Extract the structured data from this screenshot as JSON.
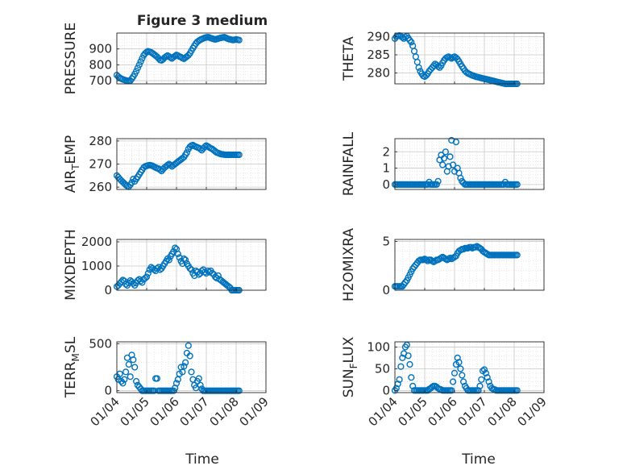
{
  "figure": {
    "title": "Figure 3 medium",
    "xlabel": "Time",
    "x_ticks": [
      "01/04",
      "01/05",
      "01/06",
      "01/07",
      "01/08",
      "01/09"
    ],
    "marker_color": "#0072BD",
    "grid_color": "#d9d9d9"
  },
  "chart_data": [
    {
      "type": "scatter",
      "ylabel": "PRESSURE",
      "ylim": [
        680,
        1000
      ],
      "yticks": [
        700,
        800,
        900
      ],
      "x": [
        4.0,
        4.05,
        4.1,
        4.15,
        4.2,
        4.25,
        4.3,
        4.35,
        4.4,
        4.45,
        4.5,
        4.55,
        4.6,
        4.65,
        4.7,
        4.75,
        4.8,
        4.85,
        4.9,
        4.95,
        5.0,
        5.05,
        5.1,
        5.15,
        5.2,
        5.25,
        5.3,
        5.35,
        5.4,
        5.45,
        5.5,
        5.55,
        5.6,
        5.65,
        5.7,
        5.75,
        5.8,
        5.85,
        5.9,
        5.95,
        6.0,
        6.05,
        6.1,
        6.15,
        6.2,
        6.25,
        6.3,
        6.35,
        6.4,
        6.45,
        6.5,
        6.55,
        6.6,
        6.65,
        6.7,
        6.75,
        6.8,
        6.85,
        6.9,
        6.95,
        7.0,
        7.05,
        7.1,
        7.15,
        7.2,
        7.25,
        7.3,
        7.35,
        7.4,
        7.45,
        7.5,
        7.55,
        7.6,
        7.65,
        7.7,
        7.75,
        7.8,
        7.85,
        7.9,
        7.95,
        8.0,
        8.05,
        8.1
      ],
      "y": [
        735,
        725,
        718,
        712,
        708,
        705,
        702,
        700,
        698,
        700,
        712,
        725,
        742,
        760,
        780,
        800,
        820,
        840,
        860,
        872,
        880,
        885,
        882,
        878,
        872,
        865,
        858,
        850,
        840,
        830,
        828,
        835,
        845,
        852,
        858,
        852,
        845,
        840,
        848,
        855,
        862,
        858,
        852,
        848,
        842,
        838,
        845,
        852,
        860,
        872,
        888,
        905,
        920,
        935,
        945,
        952,
        958,
        962,
        966,
        970,
        972,
        974,
        972,
        968,
        965,
        962,
        960,
        962,
        965,
        968,
        970,
        972,
        974,
        970,
        966,
        962,
        960,
        958,
        956,
        958,
        960,
        958,
        956
      ]
    },
    {
      "type": "scatter",
      "ylabel": "THETA",
      "ylim": [
        277,
        291
      ],
      "yticks": [
        280,
        285,
        290
      ],
      "x": [
        4.0,
        4.05,
        4.1,
        4.15,
        4.2,
        4.25,
        4.3,
        4.35,
        4.4,
        4.45,
        4.5,
        4.55,
        4.6,
        4.65,
        4.7,
        4.75,
        4.8,
        4.85,
        4.9,
        4.95,
        5.0,
        5.05,
        5.1,
        5.15,
        5.2,
        5.25,
        5.3,
        5.35,
        5.4,
        5.45,
        5.5,
        5.55,
        5.6,
        5.65,
        5.7,
        5.75,
        5.8,
        5.85,
        5.9,
        5.95,
        6.0,
        6.05,
        6.1,
        6.15,
        6.2,
        6.25,
        6.3,
        6.35,
        6.4,
        6.45,
        6.5,
        6.55,
        6.6,
        6.65,
        6.7,
        6.75,
        6.8,
        6.85,
        6.9,
        6.95,
        7.0,
        7.05,
        7.1,
        7.15,
        7.2,
        7.25,
        7.3,
        7.35,
        7.4,
        7.45,
        7.5,
        7.55,
        7.6,
        7.65,
        7.7,
        7.75,
        7.8,
        7.85,
        7.9,
        7.95,
        8.0,
        8.05,
        8.1
      ],
      "y": [
        289.5,
        290,
        290.2,
        290.3,
        290.1,
        289.8,
        289.5,
        289.9,
        290.2,
        289.6,
        289,
        288.5,
        287.5,
        286,
        284.5,
        283,
        281.5,
        280.5,
        279.8,
        279.2,
        279,
        279.3,
        279.8,
        280.5,
        281,
        281.5,
        282,
        282.5,
        282.2,
        281.8,
        281.5,
        282,
        282.8,
        283.5,
        284,
        284.3,
        284.5,
        284.2,
        284,
        284.3,
        284.5,
        284.2,
        283.8,
        283.2,
        282.5,
        281.8,
        281.2,
        280.6,
        280.2,
        279.9,
        279.7,
        279.5,
        279.3,
        279.2,
        279,
        278.9,
        278.8,
        278.7,
        278.6,
        278.5,
        278.4,
        278.3,
        278.2,
        278.1,
        278,
        277.9,
        277.8,
        277.7,
        277.6,
        277.5,
        277.4,
        277.3,
        277.2,
        277.1,
        277,
        277,
        277,
        277,
        277,
        277,
        277,
        277,
        277
      ]
    },
    {
      "type": "scatter",
      "ylabel": "AIR_TEMP",
      "ylim": [
        259,
        281
      ],
      "yticks": [
        260,
        270,
        280
      ],
      "x": [
        4.0,
        4.05,
        4.1,
        4.15,
        4.2,
        4.25,
        4.3,
        4.35,
        4.4,
        4.45,
        4.5,
        4.55,
        4.6,
        4.65,
        4.7,
        4.75,
        4.8,
        4.85,
        4.9,
        4.95,
        5.0,
        5.05,
        5.1,
        5.15,
        5.2,
        5.25,
        5.3,
        5.35,
        5.4,
        5.45,
        5.5,
        5.55,
        5.6,
        5.65,
        5.7,
        5.75,
        5.8,
        5.85,
        5.9,
        5.95,
        6.0,
        6.05,
        6.1,
        6.15,
        6.2,
        6.25,
        6.3,
        6.35,
        6.4,
        6.45,
        6.5,
        6.55,
        6.6,
        6.65,
        6.7,
        6.75,
        6.8,
        6.85,
        6.9,
        6.95,
        7.0,
        7.05,
        7.1,
        7.15,
        7.2,
        7.25,
        7.3,
        7.35,
        7.4,
        7.45,
        7.5,
        7.55,
        7.6,
        7.65,
        7.7,
        7.75,
        7.8,
        7.85,
        7.9,
        7.95,
        8.0,
        8.05,
        8.1
      ],
      "y": [
        265,
        264.3,
        263.5,
        262.8,
        262.2,
        261.6,
        261,
        260.5,
        260.2,
        261,
        262,
        263.5,
        262.5,
        263.5,
        264.5,
        265.5,
        266.5,
        267.5,
        268.5,
        269,
        269.2,
        269.4,
        269.5,
        269.4,
        269.2,
        268.8,
        268.5,
        268.2,
        268,
        267.5,
        267,
        267.8,
        268.5,
        269,
        269.5,
        270,
        269.5,
        269,
        269.5,
        270,
        270.5,
        271,
        271.5,
        272,
        272.5,
        273,
        274,
        275,
        276.5,
        277.5,
        278,
        278.2,
        277.8,
        277.5,
        277.2,
        277,
        276.5,
        276,
        276.8,
        277.5,
        278,
        277.6,
        277.2,
        276.8,
        276.5,
        276,
        275.5,
        275,
        274.8,
        274.5,
        274.3,
        274.2,
        274.1,
        274,
        274,
        274,
        274,
        274,
        274,
        274,
        274,
        274,
        274
      ]
    },
    {
      "type": "scatter",
      "ylabel": "RAINFALL",
      "ylim": [
        -0.3,
        2.8
      ],
      "yticks": [
        0,
        1,
        2
      ],
      "x": [
        4.0,
        4.05,
        4.1,
        4.15,
        4.2,
        4.25,
        4.3,
        4.35,
        4.4,
        4.45,
        4.5,
        4.55,
        4.6,
        4.65,
        4.7,
        4.75,
        4.8,
        4.85,
        4.9,
        4.95,
        5.0,
        5.05,
        5.1,
        5.15,
        5.2,
        5.25,
        5.3,
        5.35,
        5.4,
        5.45,
        5.5,
        5.55,
        5.6,
        5.65,
        5.7,
        5.75,
        5.8,
        5.85,
        5.9,
        5.95,
        6.0,
        6.05,
        6.1,
        6.15,
        6.2,
        6.25,
        6.3,
        6.35,
        6.4,
        6.45,
        6.5,
        6.55,
        6.6,
        6.65,
        6.7,
        6.75,
        6.8,
        6.85,
        6.9,
        6.95,
        7.0,
        7.05,
        7.1,
        7.15,
        7.2,
        7.25,
        7.3,
        7.35,
        7.4,
        7.45,
        7.5,
        7.55,
        7.6,
        7.65,
        7.7,
        7.75,
        7.8,
        7.85,
        7.9,
        7.95,
        8.0,
        8.05,
        8.1
      ],
      "y": [
        0,
        0,
        0,
        0,
        0,
        0,
        0,
        0,
        0,
        0,
        0,
        0,
        0,
        0,
        0,
        0,
        0,
        0,
        0,
        0,
        0,
        0,
        0,
        0.15,
        0,
        0,
        0,
        0,
        0,
        0.2,
        1.5,
        1.8,
        1.2,
        1.6,
        2.0,
        0.8,
        1.1,
        1.7,
        2.7,
        1.2,
        0.8,
        2.6,
        1.0,
        0.7,
        0.4,
        0.2,
        0.1,
        0,
        0,
        0,
        0,
        0,
        0,
        0,
        0,
        0,
        0,
        0,
        0,
        0,
        0,
        0,
        0,
        0,
        0,
        0,
        0,
        0,
        0,
        0,
        0,
        0,
        0,
        0,
        0.15,
        0,
        0,
        0,
        0,
        0,
        0,
        0,
        0
      ]
    },
    {
      "type": "scatter",
      "ylabel": "MIXDEPTH",
      "ylim": [
        0,
        2100
      ],
      "yticks": [
        0,
        1000,
        2000
      ],
      "x": [
        4.0,
        4.05,
        4.1,
        4.15,
        4.2,
        4.25,
        4.3,
        4.35,
        4.4,
        4.45,
        4.5,
        4.55,
        4.6,
        4.65,
        4.7,
        4.75,
        4.8,
        4.85,
        4.9,
        4.95,
        5.0,
        5.05,
        5.1,
        5.15,
        5.2,
        5.25,
        5.3,
        5.35,
        5.4,
        5.45,
        5.5,
        5.55,
        5.6,
        5.65,
        5.7,
        5.75,
        5.8,
        5.85,
        5.9,
        5.95,
        6.0,
        6.05,
        6.1,
        6.15,
        6.2,
        6.25,
        6.3,
        6.35,
        6.4,
        6.45,
        6.5,
        6.55,
        6.6,
        6.65,
        6.7,
        6.75,
        6.8,
        6.85,
        6.9,
        6.95,
        7.0,
        7.05,
        7.1,
        7.15,
        7.2,
        7.25,
        7.3,
        7.35,
        7.4,
        7.45,
        7.5,
        7.55,
        7.6,
        7.65,
        7.7,
        7.75,
        7.8,
        7.85,
        7.9,
        7.95,
        8.0,
        8.05,
        8.1
      ],
      "y": [
        150,
        200,
        280,
        350,
        420,
        380,
        250,
        200,
        300,
        400,
        350,
        280,
        200,
        300,
        400,
        450,
        380,
        320,
        450,
        500,
        550,
        700,
        850,
        950,
        900,
        850,
        800,
        900,
        950,
        850,
        900,
        1000,
        1100,
        1200,
        1300,
        1250,
        1400,
        1500,
        1600,
        1750,
        1700,
        1500,
        1350,
        1200,
        1100,
        1300,
        1250,
        1100,
        1000,
        900,
        850,
        700,
        600,
        800,
        750,
        650,
        700,
        800,
        850,
        750,
        700,
        800,
        750,
        800,
        700,
        650,
        550,
        500,
        600,
        450,
        400,
        350,
        300,
        250,
        200,
        150,
        100,
        0,
        0,
        0,
        0,
        0,
        0
      ]
    },
    {
      "type": "scatter",
      "ylabel": "H2OMIXRA",
      "ylim": [
        0,
        5.2
      ],
      "yticks": [
        0,
        5
      ],
      "x": [
        4.0,
        4.05,
        4.1,
        4.15,
        4.2,
        4.25,
        4.3,
        4.35,
        4.4,
        4.45,
        4.5,
        4.55,
        4.6,
        4.65,
        4.7,
        4.75,
        4.8,
        4.85,
        4.9,
        4.95,
        5.0,
        5.05,
        5.1,
        5.15,
        5.2,
        5.25,
        5.3,
        5.35,
        5.4,
        5.45,
        5.5,
        5.55,
        5.6,
        5.65,
        5.7,
        5.75,
        5.8,
        5.85,
        5.9,
        5.95,
        6.0,
        6.05,
        6.1,
        6.15,
        6.2,
        6.25,
        6.3,
        6.35,
        6.4,
        6.45,
        6.5,
        6.55,
        6.6,
        6.65,
        6.7,
        6.75,
        6.8,
        6.85,
        6.9,
        6.95,
        7.0,
        7.05,
        7.1,
        7.15,
        7.2,
        7.25,
        7.3,
        7.35,
        7.4,
        7.45,
        7.5,
        7.55,
        7.6,
        7.65,
        7.7,
        7.75,
        7.8,
        7.85,
        7.9,
        7.95,
        8.0,
        8.05,
        8.1
      ],
      "y": [
        0.4,
        0.4,
        0.4,
        0.4,
        0.4,
        0.4,
        0.6,
        0.8,
        1.0,
        1.3,
        1.6,
        1.9,
        2.2,
        2.4,
        2.6,
        2.8,
        3.0,
        3.1,
        3.1,
        3.1,
        3.2,
        3.1,
        3.0,
        3.1,
        3.1,
        3.0,
        2.9,
        3.0,
        3.1,
        3.1,
        3.2,
        3.3,
        3.4,
        3.3,
        3.2,
        3.1,
        3.2,
        3.3,
        3.2,
        3.3,
        3.4,
        3.5,
        3.8,
        4.0,
        4.1,
        4.2,
        4.2,
        4.3,
        4.3,
        4.3,
        4.4,
        4.4,
        4.3,
        4.4,
        4.4,
        4.5,
        4.4,
        4.3,
        4.2,
        4.0,
        3.9,
        3.8,
        3.7,
        3.6,
        3.6,
        3.6,
        3.6,
        3.6,
        3.6,
        3.6,
        3.6,
        3.6,
        3.6,
        3.6,
        3.6,
        3.6,
        3.6,
        3.6,
        3.6,
        3.6,
        3.6,
        3.6,
        3.6
      ]
    },
    {
      "type": "scatter",
      "ylabel": "TERR_MSL",
      "ylim": [
        -20,
        520
      ],
      "yticks": [
        0,
        500
      ],
      "x": [
        4.0,
        4.05,
        4.1,
        4.15,
        4.2,
        4.25,
        4.3,
        4.35,
        4.4,
        4.45,
        4.5,
        4.55,
        4.6,
        4.65,
        4.7,
        4.75,
        4.8,
        4.85,
        4.9,
        4.95,
        5.0,
        5.05,
        5.1,
        5.15,
        5.2,
        5.25,
        5.3,
        5.35,
        5.4,
        5.45,
        5.5,
        5.55,
        5.6,
        5.65,
        5.7,
        5.75,
        5.8,
        5.85,
        5.9,
        5.95,
        6.0,
        6.05,
        6.1,
        6.15,
        6.2,
        6.25,
        6.3,
        6.35,
        6.4,
        6.45,
        6.5,
        6.55,
        6.6,
        6.65,
        6.7,
        6.75,
        6.8,
        6.85,
        6.9,
        6.95,
        7.0,
        7.05,
        7.1,
        7.15,
        7.2,
        7.25,
        7.3,
        7.35,
        7.4,
        7.45,
        7.5,
        7.55,
        7.6,
        7.65,
        7.7,
        7.75,
        7.8,
        7.85,
        7.9,
        7.95,
        8.0,
        8.05,
        8.1
      ],
      "y": [
        150,
        120,
        180,
        100,
        80,
        120,
        200,
        350,
        280,
        150,
        380,
        330,
        250,
        100,
        60,
        40,
        20,
        0,
        0,
        0,
        0,
        0,
        0,
        0,
        0,
        0,
        130,
        130,
        0,
        0,
        0,
        0,
        0,
        0,
        0,
        0,
        0,
        0,
        0,
        30,
        80,
        120,
        180,
        250,
        200,
        260,
        300,
        400,
        480,
        370,
        200,
        120,
        60,
        30,
        100,
        130,
        60,
        20,
        0,
        0,
        0,
        0,
        0,
        0,
        0,
        0,
        0,
        0,
        0,
        0,
        0,
        0,
        0,
        0,
        0,
        0,
        0,
        0,
        0,
        0,
        0,
        0,
        0
      ]
    },
    {
      "type": "scatter",
      "ylabel": "SUN_FLUX",
      "ylim": [
        -5,
        112
      ],
      "yticks": [
        0,
        50,
        100
      ],
      "x": [
        4.0,
        4.05,
        4.1,
        4.15,
        4.2,
        4.25,
        4.3,
        4.35,
        4.4,
        4.45,
        4.5,
        4.55,
        4.6,
        4.65,
        4.7,
        4.75,
        4.8,
        4.85,
        4.9,
        4.95,
        5.0,
        5.05,
        5.1,
        5.15,
        5.2,
        5.25,
        5.3,
        5.35,
        5.4,
        5.45,
        5.5,
        5.55,
        5.6,
        5.65,
        5.7,
        5.75,
        5.8,
        5.85,
        5.9,
        5.95,
        6.0,
        6.05,
        6.1,
        6.15,
        6.2,
        6.25,
        6.3,
        6.35,
        6.4,
        6.45,
        6.5,
        6.55,
        6.6,
        6.65,
        6.7,
        6.75,
        6.8,
        6.85,
        6.9,
        6.95,
        7.0,
        7.05,
        7.1,
        7.15,
        7.2,
        7.25,
        7.3,
        7.35,
        7.4,
        7.45,
        7.5,
        7.55,
        7.6,
        7.65,
        7.7,
        7.75,
        7.8,
        7.85,
        7.9,
        7.95,
        8.0,
        8.05,
        8.1
      ],
      "y": [
        0,
        5,
        15,
        25,
        55,
        75,
        85,
        100,
        105,
        80,
        60,
        30,
        10,
        0,
        0,
        0,
        0,
        0,
        0,
        0,
        0,
        0,
        0,
        3,
        5,
        8,
        10,
        10,
        8,
        5,
        3,
        2,
        0,
        0,
        0,
        0,
        0,
        0,
        0,
        20,
        40,
        60,
        75,
        65,
        50,
        35,
        20,
        10,
        5,
        0,
        0,
        0,
        0,
        0,
        0,
        0,
        0,
        10,
        25,
        45,
        48,
        40,
        30,
        20,
        10,
        5,
        3,
        2,
        0,
        0,
        0,
        0,
        0,
        0,
        0,
        0,
        0,
        0,
        0,
        0,
        0,
        0,
        0
      ]
    }
  ]
}
